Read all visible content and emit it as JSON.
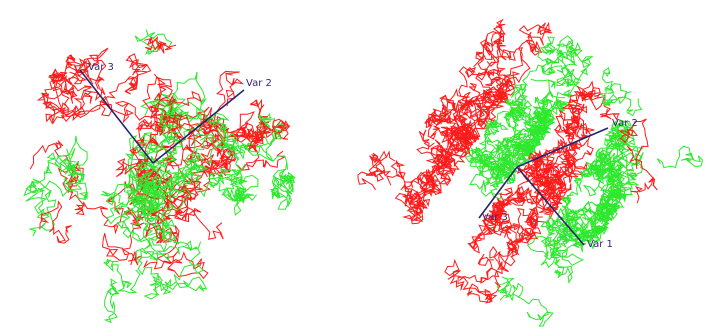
{
  "panels": [
    {
      "id": "left",
      "structure": "isotropic-cloud",
      "series_colors": {
        "class_a": "#ff1a1a",
        "class_b": "#2ee82e"
      },
      "axes": [
        {
          "label": "Var 3"
        },
        {
          "label": "Var 2"
        }
      ]
    },
    {
      "id": "right",
      "structure": "diagonal-bands",
      "series_colors": {
        "class_a": "#ff1a1a",
        "class_b": "#2ee82e"
      },
      "band_sequence": [
        "class_a",
        "class_b",
        "class_a",
        "class_b"
      ],
      "axes": [
        {
          "label": "Var 3"
        },
        {
          "label": "Var 2"
        },
        {
          "label": "Var 1"
        }
      ]
    }
  ],
  "colors": {
    "background": "#ffffff",
    "axis": "#25256e",
    "label": "#2a2a78"
  }
}
